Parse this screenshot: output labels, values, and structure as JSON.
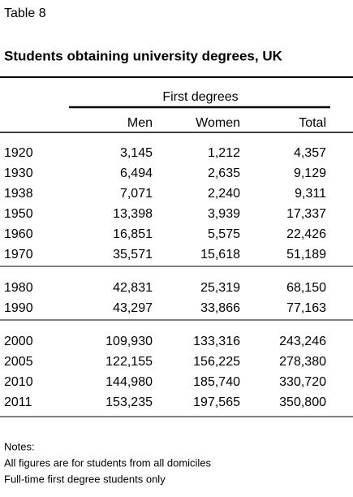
{
  "header": {
    "label": "Table 8",
    "title": "Students obtaining university degrees, UK"
  },
  "table": {
    "group_heading": "First degrees",
    "columns": [
      "Men",
      "Women",
      "Total"
    ],
    "groups": [
      {
        "rows": [
          [
            "1920",
            "3,145",
            "1,212",
            "4,357"
          ],
          [
            "1930",
            "6,494",
            "2,635",
            "9,129"
          ],
          [
            "1938",
            "7,071",
            "2,240",
            "9,311"
          ],
          [
            "1950",
            "13,398",
            "3,939",
            "17,337"
          ],
          [
            "1960",
            "16,851",
            "5,575",
            "22,426"
          ],
          [
            "1970",
            "35,571",
            "15,618",
            "51,189"
          ]
        ]
      },
      {
        "rows": [
          [
            "1980",
            "42,831",
            "25,319",
            "68,150"
          ],
          [
            "1990",
            "43,297",
            "33,866",
            "77,163"
          ]
        ]
      },
      {
        "rows": [
          [
            "2000",
            "109,930",
            "133,316",
            "243,246"
          ],
          [
            "2005",
            "122,155",
            "156,225",
            "278,380"
          ],
          [
            "2010",
            "144,980",
            "185,740",
            "330,720"
          ],
          [
            "2011",
            "153,235",
            "197,565",
            "350,800"
          ]
        ]
      }
    ]
  },
  "notes": {
    "title": "Notes:",
    "lines": [
      "All figures are for students from all domiciles",
      "Full-time first degree students only"
    ]
  }
}
